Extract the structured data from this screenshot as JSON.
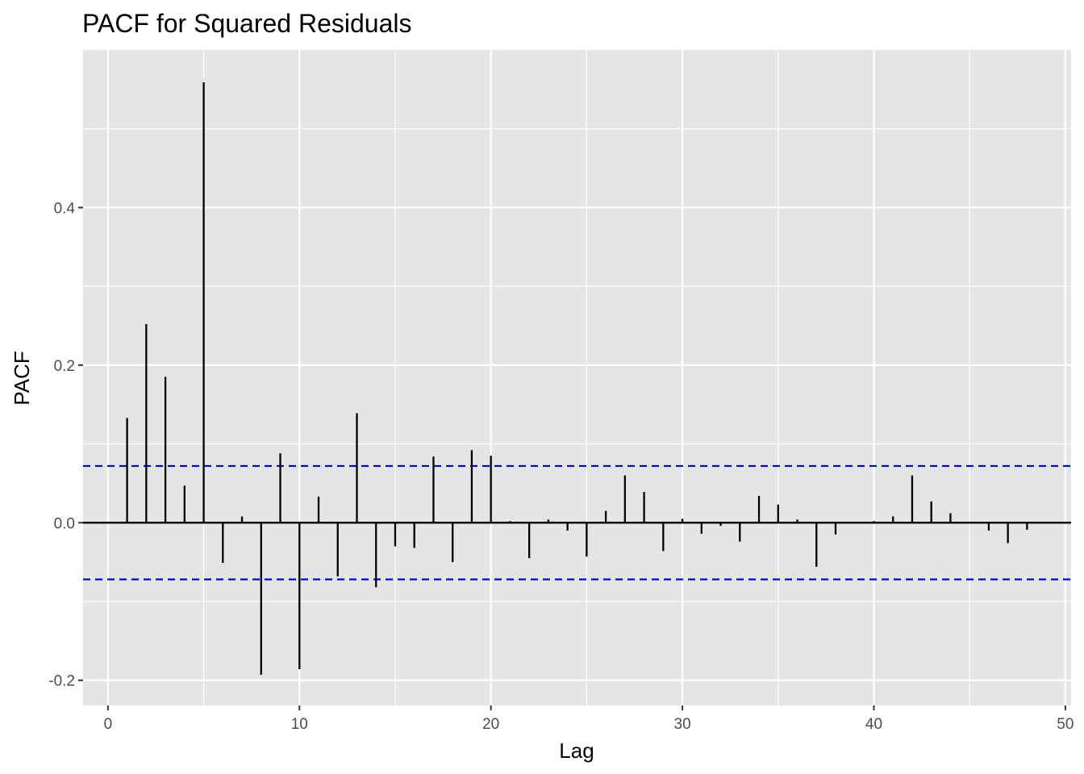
{
  "chart_data": {
    "type": "bar",
    "title": "PACF for Squared Residuals",
    "xlabel": "Lag",
    "ylabel": "PACF",
    "xlim": [
      -1.3,
      50.3
    ],
    "ylim": [
      -0.232,
      0.6
    ],
    "x_ticks": [
      0,
      10,
      20,
      30,
      40,
      50
    ],
    "x_tick_labels": [
      "0",
      "10",
      "20",
      "30",
      "40",
      "50"
    ],
    "y_ticks": [
      -0.2,
      0.0,
      0.2,
      0.4
    ],
    "y_tick_labels": [
      "-0.2",
      "0.0",
      "0.2",
      "0.4"
    ],
    "grid": true,
    "confidence_bound": 0.072,
    "lags": [
      1,
      2,
      3,
      4,
      5,
      6,
      7,
      8,
      9,
      10,
      11,
      12,
      13,
      14,
      15,
      16,
      17,
      18,
      19,
      20,
      21,
      22,
      23,
      24,
      25,
      26,
      27,
      28,
      29,
      30,
      31,
      32,
      33,
      34,
      35,
      36,
      37,
      38,
      39,
      40,
      41,
      42,
      43,
      44,
      45,
      46,
      47,
      48
    ],
    "values": [
      0.133,
      0.252,
      0.185,
      0.047,
      0.559,
      -0.051,
      0.008,
      -0.193,
      0.088,
      -0.186,
      0.033,
      -0.068,
      0.139,
      -0.082,
      -0.03,
      -0.032,
      0.084,
      -0.05,
      0.092,
      0.085,
      0.002,
      -0.045,
      0.004,
      -0.01,
      -0.043,
      0.015,
      0.06,
      0.039,
      -0.036,
      0.005,
      -0.014,
      -0.004,
      -0.024,
      0.034,
      0.023,
      0.004,
      -0.056,
      -0.015,
      -0.001,
      0.002,
      0.008,
      0.06,
      0.027,
      0.012,
      0.0,
      -0.01,
      -0.026,
      -0.009
    ],
    "colors": {
      "panel": "#e5e5e5",
      "grid": "#ffffff",
      "bars": "#000000",
      "zero_line": "#000000",
      "confidence": "#0000ff",
      "tick_label": "#4d4d4d",
      "tick_mark": "#333333"
    }
  }
}
